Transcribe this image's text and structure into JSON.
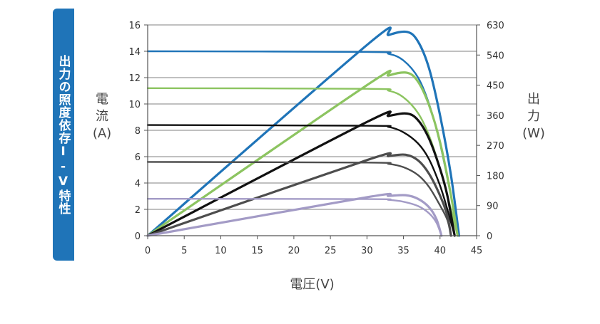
{
  "side_tab": {
    "label": "出力の照度依存I-V特性"
  },
  "chart_data": {
    "type": "line",
    "xlabel": "電圧(V)",
    "ylabel_left": [
      "電",
      "流",
      "(A)"
    ],
    "ylabel_right": [
      "出",
      "力",
      "(W)"
    ],
    "xlim": [
      0,
      45
    ],
    "ylim_left": [
      0,
      16
    ],
    "ylim_right": [
      0,
      630
    ],
    "x_ticks": [
      0,
      5,
      10,
      15,
      20,
      25,
      30,
      35,
      40,
      45
    ],
    "y_ticks_left": [
      0,
      2,
      4,
      6,
      8,
      10,
      12,
      14,
      16
    ],
    "y_ticks_right": [
      0,
      90,
      180,
      270,
      360,
      450,
      540,
      630
    ],
    "grid": "horizontal",
    "colors": [
      "#1f74b8",
      "#8cc460",
      "#111111",
      "#4d4d4d",
      "#a39bc6"
    ],
    "series": [
      {
        "kind": "current",
        "color_index": 0,
        "points": [
          [
            0,
            14.0
          ],
          [
            30,
            13.95
          ],
          [
            33,
            13.8
          ],
          [
            35,
            13.3
          ],
          [
            37,
            12.0
          ],
          [
            38.5,
            10.0
          ],
          [
            40,
            7.0
          ],
          [
            41.5,
            3.0
          ],
          [
            42.6,
            0
          ]
        ]
      },
      {
        "kind": "power",
        "color_index": 0,
        "points": [
          [
            0,
            0
          ],
          [
            30,
            570
          ],
          [
            33,
            600
          ],
          [
            35.5,
            609
          ],
          [
            37,
            580
          ],
          [
            38.5,
            500
          ],
          [
            40,
            360
          ],
          [
            41.5,
            180
          ],
          [
            42.6,
            0
          ]
        ]
      },
      {
        "kind": "current",
        "color_index": 1,
        "points": [
          [
            0,
            11.2
          ],
          [
            30,
            11.15
          ],
          [
            33,
            11.0
          ],
          [
            35,
            10.5
          ],
          [
            37,
            9.3
          ],
          [
            38.5,
            7.6
          ],
          [
            40,
            5.1
          ],
          [
            41.5,
            2.0
          ],
          [
            42.4,
            0
          ]
        ]
      },
      {
        "kind": "power",
        "color_index": 1,
        "points": [
          [
            0,
            0
          ],
          [
            30,
            450
          ],
          [
            33,
            479
          ],
          [
            35.5,
            487
          ],
          [
            37,
            460
          ],
          [
            38.5,
            390
          ],
          [
            40,
            280
          ],
          [
            41.5,
            120
          ],
          [
            42.4,
            0
          ]
        ]
      },
      {
        "kind": "current",
        "color_index": 2,
        "points": [
          [
            0,
            8.4
          ],
          [
            30,
            8.35
          ],
          [
            33,
            8.25
          ],
          [
            35,
            7.85
          ],
          [
            37,
            7.0
          ],
          [
            38.5,
            5.8
          ],
          [
            40,
            3.8
          ],
          [
            41,
            2.0
          ],
          [
            42.0,
            0
          ]
        ]
      },
      {
        "kind": "power",
        "color_index": 2,
        "points": [
          [
            0,
            0
          ],
          [
            30,
            340
          ],
          [
            33,
            358
          ],
          [
            35.5,
            365
          ],
          [
            37,
            345
          ],
          [
            38.5,
            290
          ],
          [
            40,
            200
          ],
          [
            41,
            120
          ],
          [
            42.0,
            0
          ]
        ]
      },
      {
        "kind": "current",
        "color_index": 3,
        "points": [
          [
            0,
            5.6
          ],
          [
            30,
            5.55
          ],
          [
            33,
            5.45
          ],
          [
            35,
            5.2
          ],
          [
            37,
            4.6
          ],
          [
            38.5,
            3.7
          ],
          [
            40,
            2.3
          ],
          [
            41,
            1.2
          ],
          [
            41.5,
            0
          ]
        ]
      },
      {
        "kind": "power",
        "color_index": 3,
        "points": [
          [
            0,
            0
          ],
          [
            30,
            226
          ],
          [
            33,
            238
          ],
          [
            35.3,
            242
          ],
          [
            37,
            225
          ],
          [
            38.5,
            185
          ],
          [
            40,
            120
          ],
          [
            41,
            60
          ],
          [
            41.5,
            0
          ]
        ]
      },
      {
        "kind": "current",
        "color_index": 4,
        "points": [
          [
            0,
            2.8
          ],
          [
            30,
            2.78
          ],
          [
            33,
            2.72
          ],
          [
            35,
            2.58
          ],
          [
            37,
            2.25
          ],
          [
            38.5,
            1.7
          ],
          [
            39.5,
            1.0
          ],
          [
            40.2,
            0
          ]
        ]
      },
      {
        "kind": "power",
        "color_index": 4,
        "points": [
          [
            0,
            0
          ],
          [
            30,
            115
          ],
          [
            33,
            119
          ],
          [
            35.3,
            121
          ],
          [
            37,
            110
          ],
          [
            38.5,
            85
          ],
          [
            39.5,
            50
          ],
          [
            40.2,
            0
          ]
        ]
      }
    ]
  }
}
